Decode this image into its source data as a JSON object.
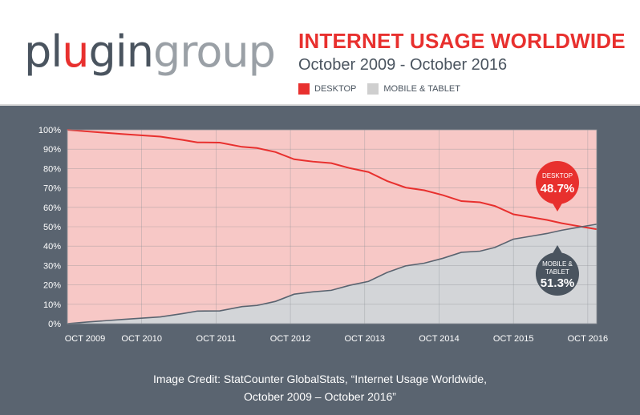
{
  "header": {
    "logo": {
      "part1": "pl",
      "part2": "u",
      "part3": "gin",
      "part4": "group"
    },
    "title": "INTERNET USAGE WORLDWIDE",
    "subtitle": "October 2009 - October 2016",
    "legend": [
      {
        "label": "DESKTOP",
        "color": "#e8302e"
      },
      {
        "label": "MOBILE & TABLET",
        "color": "#cfcfcf"
      }
    ]
  },
  "chart_data": {
    "type": "area",
    "x_categories": [
      "OCT 2009",
      "OCT 2010",
      "OCT 2011",
      "OCT 2012",
      "OCT 2013",
      "OCT 2014",
      "OCT 2015",
      "OCT 2016"
    ],
    "y_ticks": [
      "0%",
      "10%",
      "20%",
      "30%",
      "40%",
      "50%",
      "60%",
      "70%",
      "80%",
      "90%",
      "100%"
    ],
    "ylim": [
      0,
      100
    ],
    "xlim": [
      2009.75,
      2016.87
    ],
    "grid": true,
    "series": [
      {
        "name": "DESKTOP",
        "color": "#e8302e",
        "fill": "#f7c8c6",
        "x": [
          2009.75,
          2010.0,
          2010.5,
          2011.0,
          2011.3,
          2011.5,
          2011.8,
          2012.1,
          2012.3,
          2012.55,
          2012.8,
          2013.05,
          2013.3,
          2013.55,
          2013.8,
          2014.05,
          2014.3,
          2014.55,
          2014.8,
          2015.05,
          2015.3,
          2015.5,
          2015.75,
          2016.0,
          2016.2,
          2016.4,
          2016.55,
          2016.7,
          2016.87
        ],
        "values": [
          100,
          99.2,
          97.8,
          96.5,
          94.8,
          93.5,
          93.4,
          91.2,
          90.6,
          88.5,
          84.8,
          83.6,
          82.8,
          80.2,
          78.2,
          73.6,
          70.2,
          68.8,
          66.3,
          63.2,
          62.6,
          60.7,
          56.4,
          54.8,
          53.5,
          51.8,
          50.8,
          49.8,
          48.7
        ]
      },
      {
        "name": "MOBILE & TABLET",
        "color": "#4a545f",
        "fill": "#d3d5d8",
        "x": [
          2009.75,
          2010.0,
          2010.5,
          2011.0,
          2011.3,
          2011.5,
          2011.8,
          2012.1,
          2012.3,
          2012.55,
          2012.8,
          2013.05,
          2013.3,
          2013.55,
          2013.8,
          2014.05,
          2014.3,
          2014.55,
          2014.8,
          2015.05,
          2015.3,
          2015.5,
          2015.75,
          2016.0,
          2016.2,
          2016.4,
          2016.55,
          2016.7,
          2016.87
        ],
        "values": [
          0,
          0.8,
          2.2,
          3.5,
          5.2,
          6.5,
          6.6,
          8.8,
          9.4,
          11.5,
          15.2,
          16.4,
          17.2,
          19.8,
          21.8,
          26.4,
          29.8,
          31.2,
          33.7,
          36.8,
          37.4,
          39.3,
          43.6,
          45.2,
          46.5,
          48.2,
          49.2,
          50.2,
          51.3
        ]
      }
    ],
    "annotations": [
      {
        "label": "DESKTOP",
        "value": "48.7%",
        "color": "#e8302e"
      },
      {
        "label": "MOBILE & TABLET",
        "value": "51.3%",
        "color": "#4a545f"
      }
    ]
  },
  "credit": {
    "line1": "Image Credit: StatCounter GlobalStats, “Internet Usage Worldwide,",
    "line2": "October 2009 – October 2016”"
  }
}
